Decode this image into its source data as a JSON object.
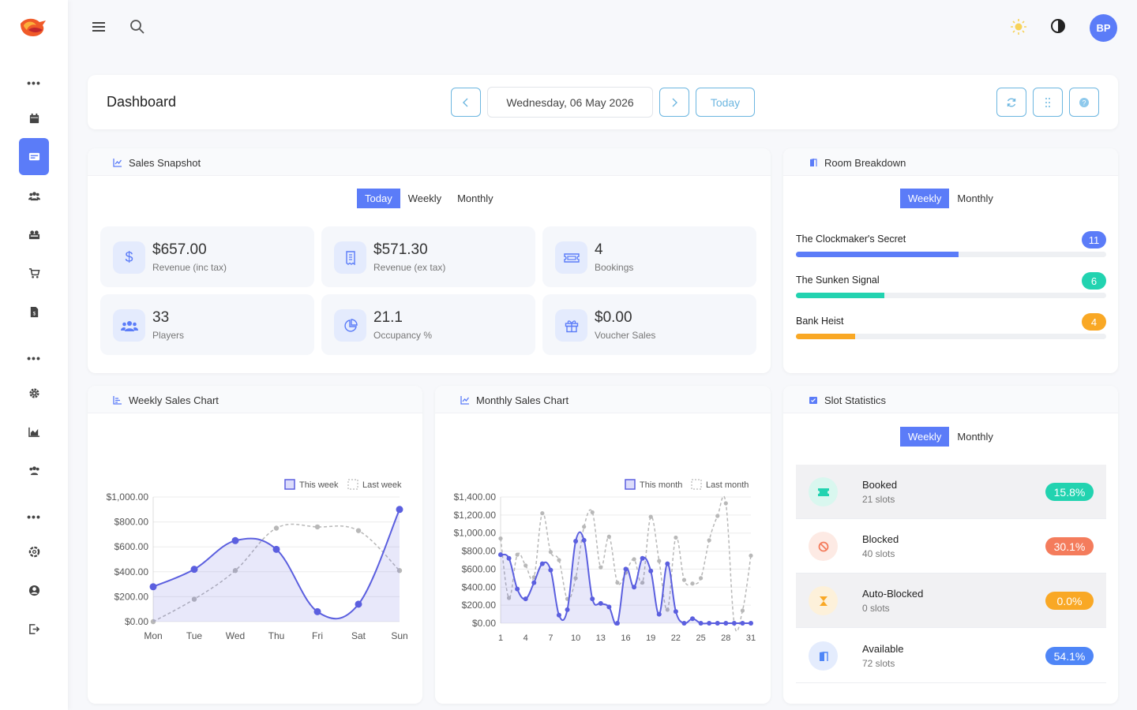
{
  "topbar": {
    "avatar_initials": "BP"
  },
  "header": {
    "title": "Dashboard",
    "date": "Wednesday, 06 May 2026",
    "today_label": "Today"
  },
  "sales_snapshot": {
    "title": "Sales Snapshot",
    "tabs": [
      "Today",
      "Weekly",
      "Monthly"
    ],
    "active_tab": "Today",
    "tiles": [
      {
        "value": "$657.00",
        "label": "Revenue (inc tax)",
        "icon": "dollar-icon"
      },
      {
        "value": "$571.30",
        "label": "Revenue (ex tax)",
        "icon": "receipt-icon"
      },
      {
        "value": "4",
        "label": "Bookings",
        "icon": "ticket-icon"
      },
      {
        "value": "33",
        "label": "Players",
        "icon": "users-icon"
      },
      {
        "value": "21.1",
        "label": "Occupancy %",
        "icon": "pie-icon"
      },
      {
        "value": "$0.00",
        "label": "Voucher Sales",
        "icon": "gift-icon"
      }
    ]
  },
  "room_breakdown": {
    "title": "Room Breakdown",
    "tabs": [
      "Weekly",
      "Monthly"
    ],
    "active_tab": "Weekly",
    "rooms": [
      {
        "name": "The Clockmaker's Secret",
        "count": "11",
        "fraction": 0.524,
        "color": "#5b7cf8"
      },
      {
        "name": "The Sunken Signal",
        "count": "6",
        "fraction": 0.286,
        "color": "#22d3b0"
      },
      {
        "name": "Bank Heist",
        "count": "4",
        "fraction": 0.19,
        "color": "#f9a825"
      }
    ]
  },
  "slot_statistics": {
    "title": "Slot Statistics",
    "tabs": [
      "Weekly",
      "Monthly"
    ],
    "active_tab": "Weekly",
    "rows": [
      {
        "title": "Booked",
        "sub": "21 slots",
        "pct": "15.8%",
        "color": "#22d3b0"
      },
      {
        "title": "Blocked",
        "sub": "40 slots",
        "pct": "30.1%",
        "color": "#f47c5c"
      },
      {
        "title": "Auto-Blocked",
        "sub": "0 slots",
        "pct": "0.0%",
        "color": "#f9a825"
      },
      {
        "title": "Available",
        "sub": "72 slots",
        "pct": "54.1%",
        "color": "#4f86f7"
      }
    ]
  },
  "weekly_chart_title": "Weekly Sales Chart",
  "monthly_chart_title": "Monthly Sales Chart",
  "chart_data": [
    {
      "type": "line",
      "categories": [
        "Mon",
        "Tue",
        "Wed",
        "Thu",
        "Fri",
        "Sat",
        "Sun"
      ],
      "series": [
        {
          "name": "This week",
          "values": [
            280,
            420,
            650,
            580,
            80,
            140,
            900
          ],
          "color": "#5b5fdf"
        },
        {
          "name": "Last week",
          "values": [
            0,
            180,
            410,
            750,
            760,
            730,
            410
          ],
          "color": "#b8b8b8"
        }
      ],
      "yticks": [
        "$1,000.00",
        "$800.00",
        "$600.00",
        "$400.00",
        "$200.00",
        "$0.00"
      ],
      "ylim": [
        0,
        1000
      ],
      "legend": "top-right"
    },
    {
      "type": "line",
      "x_ticks": [
        "1",
        "4",
        "7",
        "10",
        "13",
        "16",
        "19",
        "22",
        "25",
        "28",
        "31"
      ],
      "series": [
        {
          "name": "This month",
          "values": [
            760,
            720,
            380,
            270,
            450,
            660,
            590,
            90,
            150,
            910,
            920,
            270,
            220,
            180,
            0,
            600,
            400,
            720,
            580,
            100,
            660,
            130,
            0,
            50,
            0,
            0,
            0,
            0,
            0,
            0,
            0
          ],
          "color": "#5b5fdf"
        },
        {
          "name": "Last month",
          "values": [
            940,
            280,
            760,
            640,
            510,
            1220,
            790,
            700,
            270,
            500,
            1070,
            1230,
            620,
            960,
            450,
            560,
            710,
            450,
            1180,
            690,
            150,
            950,
            480,
            440,
            500,
            920,
            1190,
            1330,
            0,
            140,
            750
          ],
          "color": "#b8b8b8"
        }
      ],
      "yticks": [
        "$1,400.00",
        "$1,200.00",
        "$1,000.00",
        "$800.00",
        "$600.00",
        "$400.00",
        "$200.00",
        "$0.00"
      ],
      "ylim": [
        0,
        1400
      ],
      "legend": "top-right"
    }
  ]
}
